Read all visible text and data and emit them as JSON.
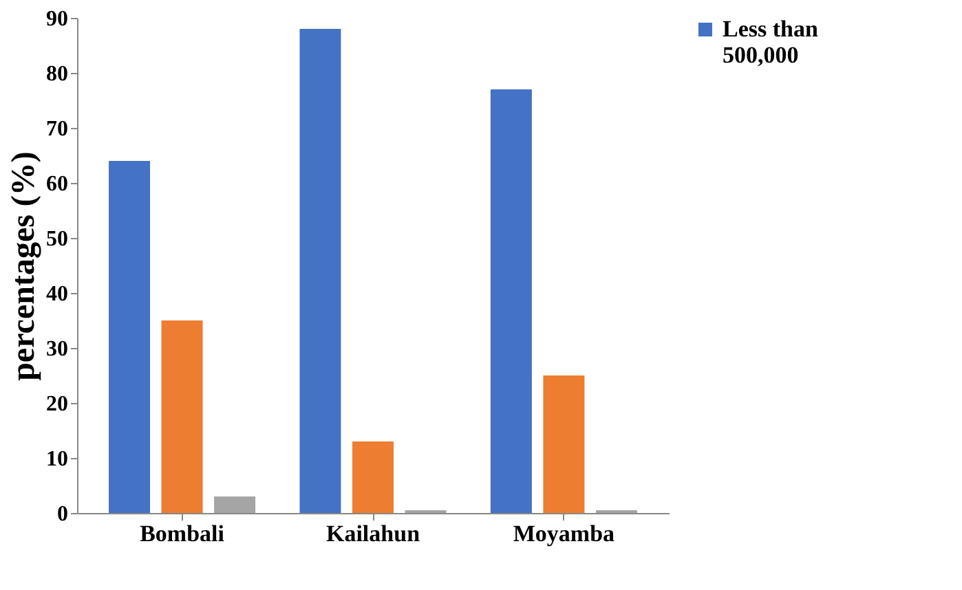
{
  "chart_data": {
    "type": "bar",
    "ylabel": "percentages (%)",
    "categories": [
      "Bombali",
      "Kailahun",
      "Moyamba"
    ],
    "series": [
      {
        "name": "Less than 500,000",
        "color": "#4472c4",
        "values": [
          64,
          88,
          77
        ]
      },
      {
        "color": "#ed7d31",
        "values": [
          35,
          13,
          25
        ]
      },
      {
        "color": "#a5a5a5",
        "values": [
          3,
          0.5,
          0.5
        ]
      }
    ],
    "ylim": [
      0,
      90
    ],
    "yticks": [
      0,
      10,
      20,
      30,
      40,
      50,
      60,
      70,
      80,
      90
    ],
    "grid": false,
    "legend": "right"
  }
}
